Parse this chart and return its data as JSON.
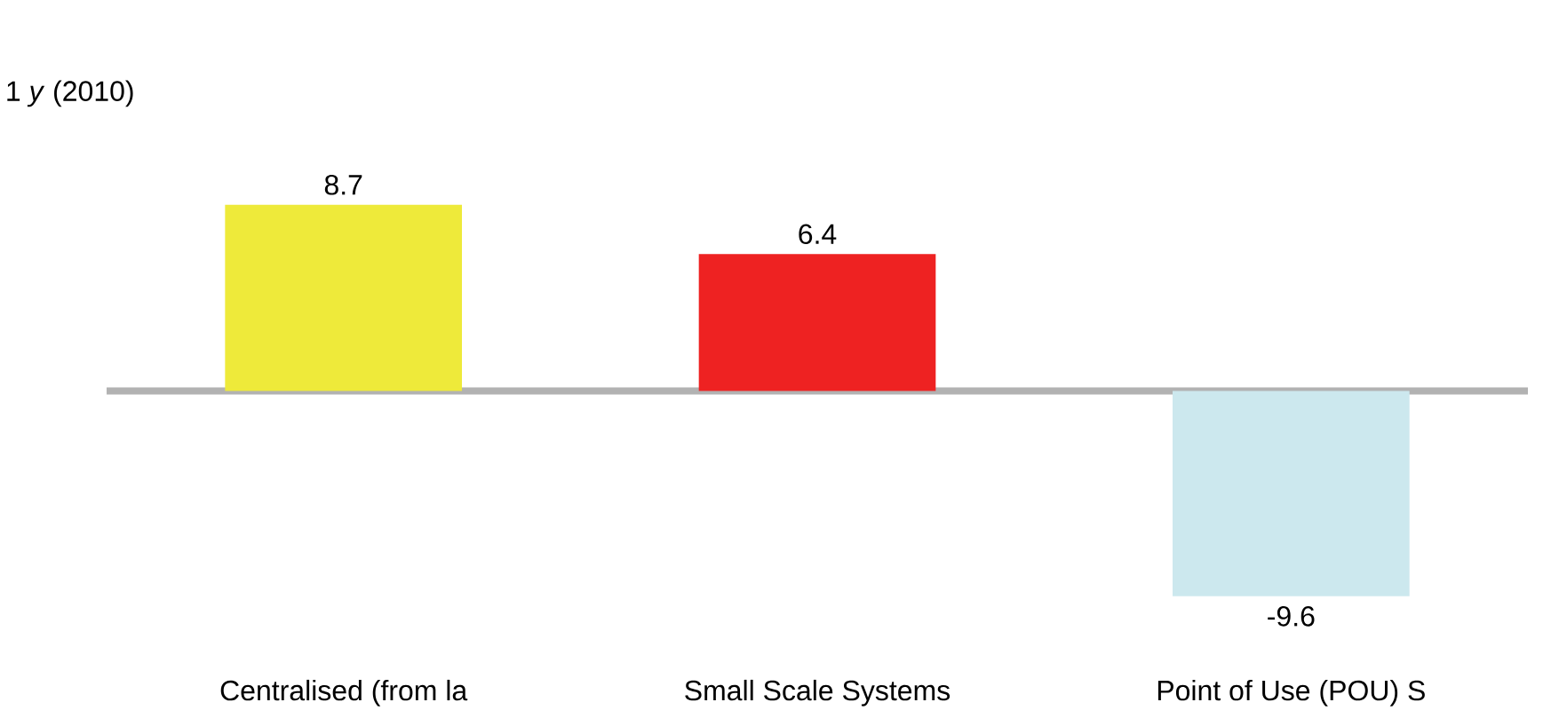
{
  "chart_data": {
    "type": "bar",
    "title": "1 *y* (2010)",
    "categories": [
      "Centralised (from la",
      "Small Scale Systems",
      "Point of Use (POU) S"
    ],
    "values": [
      8.7,
      6.4,
      -9.6
    ],
    "colors": [
      "#eeea3a",
      "#ee2222",
      "#cce8ee"
    ],
    "data_labels": true
  }
}
